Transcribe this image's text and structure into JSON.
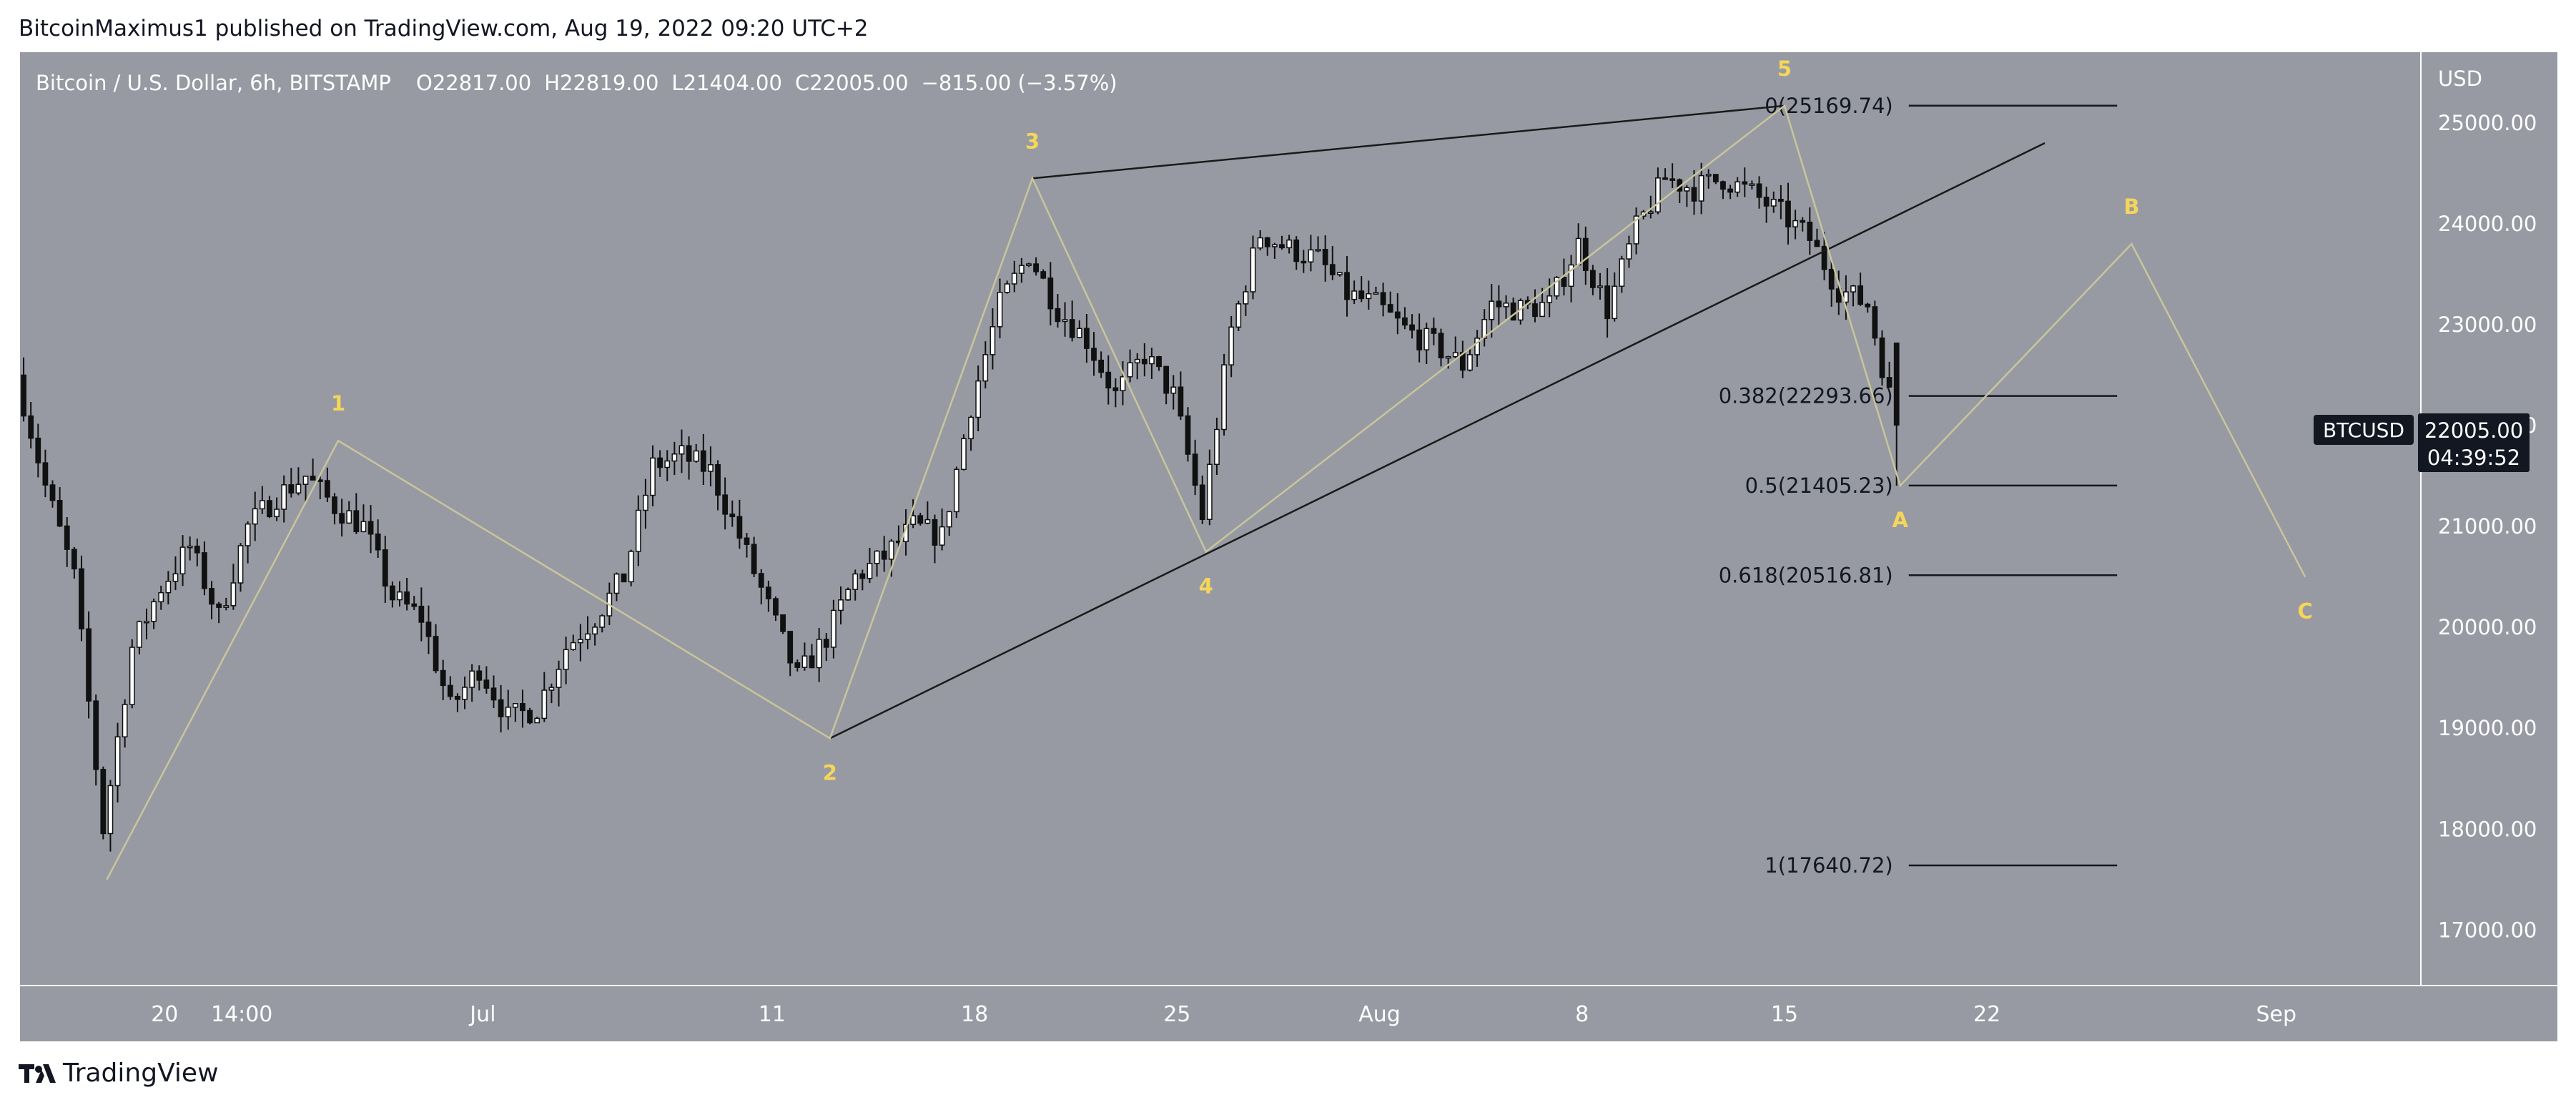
{
  "header": {
    "publisher": "BitcoinMaximus1 published on TradingView.com, Aug 19, 2022 09:20 UTC+2"
  },
  "legend": {
    "symbol": "Bitcoin / U.S. Dollar, 6h, BITSTAMP",
    "o_label": "O",
    "o_value": "22817.00",
    "h_label": "H",
    "h_value": "22819.00",
    "l_label": "L",
    "l_value": "21404.00",
    "c_label": "C",
    "c_value": "22005.00",
    "change": "−815.00 (−3.57%)"
  },
  "price_axis": {
    "currency": "USD",
    "ticks": [
      "25000.00",
      "24000.00",
      "23000.00",
      "22000.00",
      "21000.00",
      "20000.00",
      "19000.00",
      "18000.00",
      "17000.00"
    ],
    "ticker_label": "BTCUSD",
    "current_price": "22005.00",
    "countdown": "04:39:52"
  },
  "time_axis": {
    "ticks": [
      "20",
      "14:00",
      "Jul",
      "11",
      "18",
      "25",
      "Aug",
      "8",
      "15",
      "22",
      "Sep"
    ]
  },
  "fib_levels": [
    {
      "label": "0(25169.74)",
      "price": 25169.74
    },
    {
      "label": "0.382(22293.66)",
      "price": 22293.66
    },
    {
      "label": "0.5(21405.23)",
      "price": 21405.23
    },
    {
      "label": "0.618(20516.81)",
      "price": 20516.81
    },
    {
      "label": "1(17640.72)",
      "price": 17640.72
    }
  ],
  "wave_labels": [
    "1",
    "2",
    "3",
    "4",
    "5",
    "A",
    "B",
    "C"
  ],
  "footer": {
    "brand": "TradingView"
  },
  "colors": {
    "chart_bg": "#979aa2",
    "wave_line": "#c9c59c",
    "wave_label": "#f5d65a",
    "line_black": "#1a1a1a",
    "candle_up": "#ffffff",
    "candle_down": "#111111"
  },
  "chart_data": {
    "type": "candlestick",
    "title": "Bitcoin / U.S. Dollar, 6h, BITSTAMP",
    "ylim": [
      16450,
      25700
    ],
    "xlim_dates": [
      "2022-06-15",
      "2022-09-06"
    ],
    "close_path": [
      [
        "2022-06-15",
        22500
      ],
      [
        "2022-06-16",
        21400
      ],
      [
        "2022-06-17",
        20500
      ],
      [
        "2022-06-18",
        18000
      ],
      [
        "2022-06-19",
        19800
      ],
      [
        "2022-06-20",
        20400
      ],
      [
        "2022-06-21",
        20800
      ],
      [
        "2022-06-22",
        20100
      ],
      [
        "2022-06-23",
        21000
      ],
      [
        "2022-06-24",
        21300
      ],
      [
        "2022-06-25",
        21500
      ],
      [
        "2022-06-26",
        21200
      ],
      [
        "2022-06-27",
        21000
      ],
      [
        "2022-06-28",
        20300
      ],
      [
        "2022-06-29",
        20100
      ],
      [
        "2022-06-30",
        19200
      ],
      [
        "2022-07-01",
        19600
      ],
      [
        "2022-07-02",
        19100
      ],
      [
        "2022-07-03",
        19200
      ],
      [
        "2022-07-04",
        19800
      ],
      [
        "2022-07-05",
        20100
      ],
      [
        "2022-07-06",
        20500
      ],
      [
        "2022-07-07",
        21600
      ],
      [
        "2022-07-08",
        21700
      ],
      [
        "2022-07-09",
        21550
      ],
      [
        "2022-07-10",
        20900
      ],
      [
        "2022-07-11",
        20200
      ],
      [
        "2022-07-12",
        19500
      ],
      [
        "2022-07-13",
        19900
      ],
      [
        "2022-07-14",
        20500
      ],
      [
        "2022-07-15",
        20700
      ],
      [
        "2022-07-16",
        21000
      ],
      [
        "2022-07-17",
        20900
      ],
      [
        "2022-07-18",
        22200
      ],
      [
        "2022-07-19",
        23200
      ],
      [
        "2022-07-20",
        23700
      ],
      [
        "2022-07-21",
        23150
      ],
      [
        "2022-07-22",
        22850
      ],
      [
        "2022-07-23",
        22300
      ],
      [
        "2022-07-24",
        22700
      ],
      [
        "2022-07-25",
        22300
      ],
      [
        "2022-07-26",
        21100
      ],
      [
        "2022-07-27",
        22950
      ],
      [
        "2022-07-28",
        23900
      ],
      [
        "2022-07-29",
        23750
      ],
      [
        "2022-07-30",
        23650
      ],
      [
        "2022-07-31",
        23300
      ],
      [
        "2022-08-01",
        23200
      ],
      [
        "2022-08-02",
        22950
      ],
      [
        "2022-08-03",
        22800
      ],
      [
        "2022-08-04",
        22600
      ],
      [
        "2022-08-05",
        23200
      ],
      [
        "2022-08-06",
        23150
      ],
      [
        "2022-08-07",
        23200
      ],
      [
        "2022-08-08",
        23800
      ],
      [
        "2022-08-09",
        23150
      ],
      [
        "2022-08-10",
        23950
      ],
      [
        "2022-08-11",
        24450
      ],
      [
        "2022-08-12",
        24350
      ],
      [
        "2022-08-13",
        24450
      ],
      [
        "2022-08-14",
        24300
      ],
      [
        "2022-08-15",
        24100
      ],
      [
        "2022-08-16",
        23850
      ],
      [
        "2022-08-17",
        23350
      ],
      [
        "2022-08-18",
        23200
      ],
      [
        "2022-08-19",
        22005
      ]
    ],
    "last_candle": {
      "open": 22817,
      "high": 22819,
      "low": 21404,
      "close": 22005
    },
    "wave_points": [
      {
        "label": "1",
        "date": "2022-06-26",
        "price": 21850
      },
      {
        "label": "2",
        "date": "2022-07-13",
        "price": 18900
      },
      {
        "label": "3",
        "date": "2022-07-20",
        "price": 24450
      },
      {
        "label": "4",
        "date": "2022-07-26",
        "price": 20750
      },
      {
        "label": "5",
        "date": "2022-08-15",
        "price": 25169.74
      },
      {
        "label": "A",
        "date": "2022-08-19",
        "price": 21405
      },
      {
        "label": "B",
        "date": "2022-08-27",
        "price": 23800
      },
      {
        "label": "C",
        "date": "2022-09-02",
        "price": 20500
      }
    ],
    "wave_start": {
      "date": "2022-06-18",
      "price": 17500
    },
    "wedge_upper": [
      [
        "2022-07-20",
        24450
      ],
      [
        "2022-08-15",
        25169.74
      ]
    ],
    "wedge_lower": [
      [
        "2022-07-13",
        18900
      ],
      [
        "2022-08-24",
        24800
      ]
    ]
  }
}
